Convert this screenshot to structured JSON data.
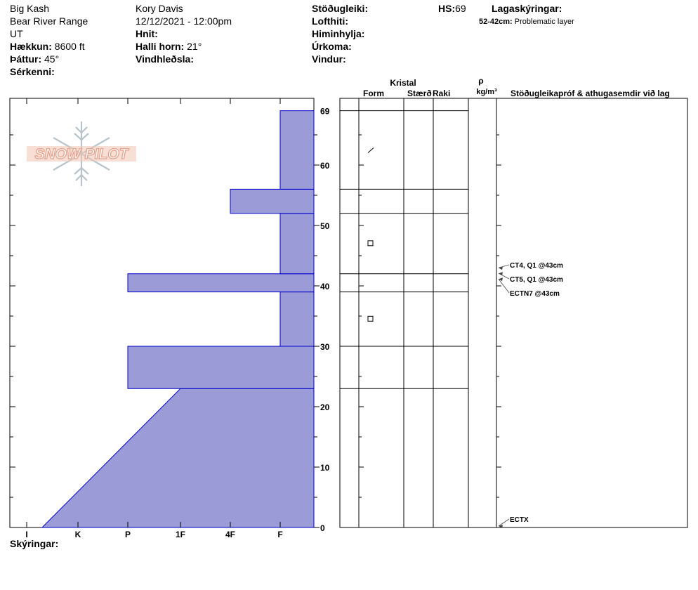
{
  "header": {
    "site": "Big Kash",
    "range": "Bear River Range",
    "state": "UT",
    "elevation_label": "Hækkun:",
    "elevation_value": "8600 ft",
    "aspect_label": "Þáttur:",
    "aspect_value": "45°",
    "features_label": "Sérkenni:",
    "observer": "Kory Davis",
    "datetime": "12/12/2021 - 12:00pm",
    "coords_label": "Hnit:",
    "slope_label": "Halli horn:",
    "slope_value": "21°",
    "wind_loading_label": "Vindhleðsla:",
    "stability_label": "Stöðugleiki:",
    "air_temp_label": "Lofthiti:",
    "sky_label": "Himinhylja:",
    "precip_label": "Úrkoma:",
    "wind_label": "Vindur:",
    "hs_label": "HS:",
    "hs_value": "69",
    "layer_notes_label": "Lagaskýringar:",
    "layer_note_range": "52-42cm:",
    "layer_note_text": "Problematic layer"
  },
  "columns": {
    "crystal": "Kristal",
    "form": "Form",
    "size": "Stærð",
    "moisture": "Raki",
    "rho": "ρ",
    "density_unit": "kg/m³",
    "tests": "Stöðugleikapróf & athugasemdir við lag"
  },
  "notes_label": "Skýringar:",
  "logo_text": "SNOW PILOT",
  "colors": {
    "layer_fill": "#9b9bd8",
    "layer_stroke": "#0000cc",
    "logo": "#e8a08a",
    "flake": "#b8c4cc"
  },
  "chart_data": {
    "type": "snow_profile",
    "hs_cm": 69,
    "hardness_scale": [
      "I",
      "K",
      "P",
      "1F",
      "4F",
      "F"
    ],
    "depth_ticks": [
      "0",
      "10",
      "20",
      "30",
      "40",
      "50",
      "60",
      "69"
    ],
    "ylim": [
      0,
      69
    ],
    "layers": [
      {
        "bottom": 0,
        "top": 23,
        "hardness_bottom": 0.3,
        "hardness_top": 3.0
      },
      {
        "bottom": 23,
        "top": 30,
        "hardness_bottom": 2.0,
        "hardness_top": 2.0
      },
      {
        "bottom": 30,
        "top": 39,
        "hardness_bottom": 5.0,
        "hardness_top": 5.0
      },
      {
        "bottom": 39,
        "top": 42,
        "hardness_bottom": 2.0,
        "hardness_top": 2.0
      },
      {
        "bottom": 42,
        "top": 52,
        "hardness_bottom": 5.0,
        "hardness_top": 5.0
      },
      {
        "bottom": 52,
        "top": 56,
        "hardness_bottom": 4.0,
        "hardness_top": 4.0
      },
      {
        "bottom": 56,
        "top": 69,
        "hardness_bottom": 5.0,
        "hardness_top": 5.0
      }
    ],
    "grain_symbols": [
      {
        "depth": 62.5,
        "symbol": "slash"
      },
      {
        "depth": 47,
        "symbol": "square"
      },
      {
        "depth": 34.5,
        "symbol": "square"
      }
    ],
    "tests": [
      {
        "label": "CT4, Q1 @43cm",
        "depth": 43
      },
      {
        "label": "CT5, Q1 @43cm",
        "depth": 43
      },
      {
        "label": "ECTN7 @43cm",
        "depth": 43
      },
      {
        "label": "ECTX",
        "depth": 0
      }
    ]
  }
}
